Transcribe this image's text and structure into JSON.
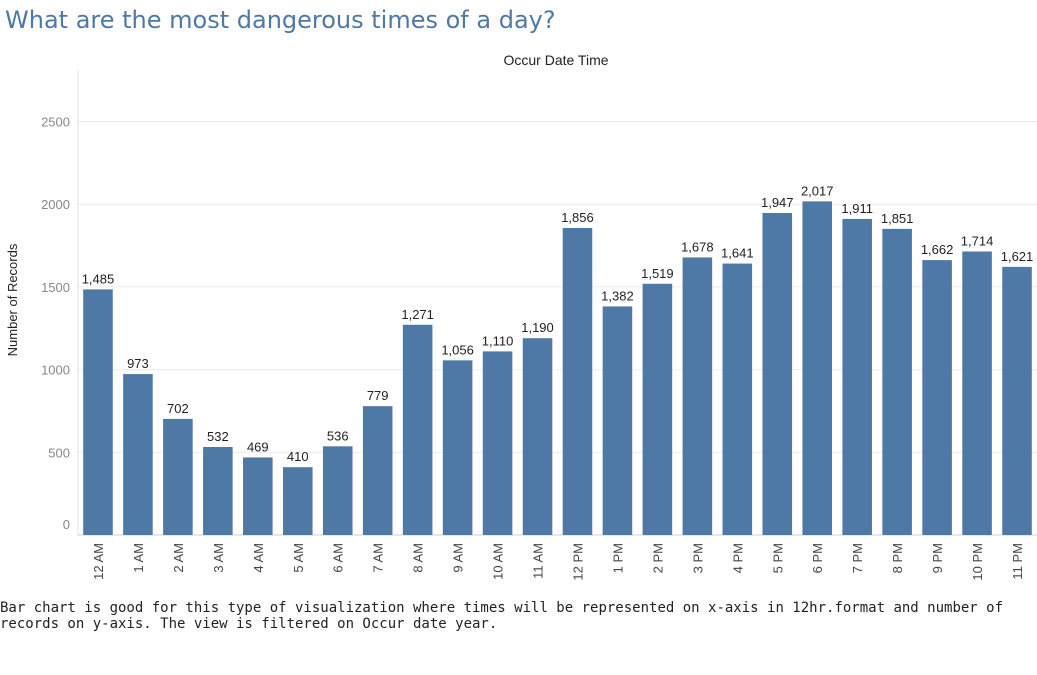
{
  "title": "What are the most dangerous times of a day?",
  "chart_data": {
    "type": "bar",
    "header": "Occur Date Time",
    "ylabel": "Number of Records",
    "xlabel": "",
    "ylim": [
      0,
      2500
    ],
    "yticks": [
      0,
      500,
      1000,
      1500,
      2000,
      2500
    ],
    "grid": true,
    "bar_color": "#4e79a7",
    "categories": [
      "12 AM",
      "1 AM",
      "2 AM",
      "3 AM",
      "4 AM",
      "5 AM",
      "6 AM",
      "7 AM",
      "8 AM",
      "9 AM",
      "10 AM",
      "11 AM",
      "12 PM",
      "1 PM",
      "2 PM",
      "3 PM",
      "4 PM",
      "5 PM",
      "6 PM",
      "7 PM",
      "8 PM",
      "9 PM",
      "10 PM",
      "11 PM"
    ],
    "values": [
      1485,
      973,
      702,
      532,
      469,
      410,
      536,
      779,
      1271,
      1056,
      1110,
      1190,
      1856,
      1382,
      1519,
      1678,
      1641,
      1947,
      2017,
      1911,
      1851,
      1662,
      1714,
      1621
    ],
    "data_labels": [
      "1,485",
      "973",
      "702",
      "532",
      "469",
      "410",
      "536",
      "779",
      "1,271",
      "1,056",
      "1,110",
      "1,190",
      "1,856",
      "1,382",
      "1,519",
      "1,678",
      "1,641",
      "1,947",
      "2,017",
      "1,911",
      "1,851",
      "1,662",
      "1,714",
      "1,621"
    ]
  },
  "caption": "Bar chart is good for this type of visualization where times will be represented on x-axis in 12hr.format and number of records on y-axis. The view is filtered on Occur date year."
}
